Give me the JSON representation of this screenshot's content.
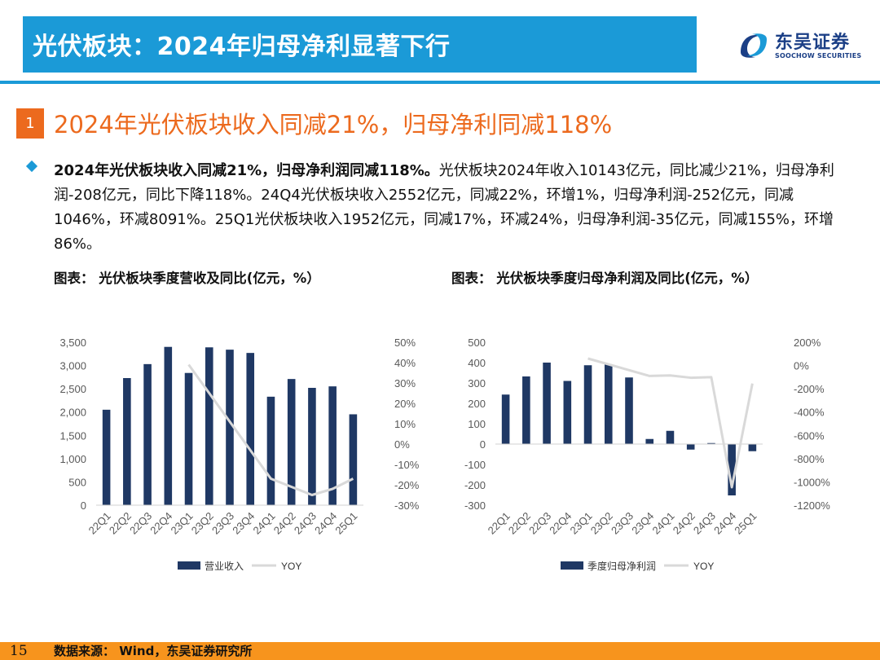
{
  "header": {
    "title": "光伏板块：2024年归母净利显著下行",
    "logo_cn": "东吴证券",
    "logo_en": "SOOCHOW SECURITIES",
    "accent": "#1b9ad7",
    "logo_color": "#1b3f86"
  },
  "section": {
    "number": "1",
    "title": "2024年光伏板块收入同减21%，归母净利同减118%",
    "accent": "#ec6a1e"
  },
  "body": {
    "bold_lead": "2024年光伏板块收入同减21%，归母净利润同减118%。",
    "text": "光伏板块2024年收入10143亿元，同比减少21%，归母净利润-208亿元，同比下降118%。24Q4光伏板块收入2552亿元，同减22%，环增1%，归母净利润-252亿元，同减1046%，环减8091%。25Q1光伏板块收入1952亿元，同减17%，环减24%，归母净利润-35亿元，同减155%，环增86%。"
  },
  "figures": [
    {
      "caption": "图表：  光伏板块季度营收及同比(亿元，%）"
    },
    {
      "caption": "图表：  光伏板块季度归母净利润及同比(亿元，%）"
    }
  ],
  "chart_data": [
    {
      "type": "bar",
      "categories": [
        "22Q1",
        "22Q2",
        "22Q3",
        "22Q4",
        "23Q1",
        "23Q2",
        "23Q3",
        "23Q4",
        "24Q1",
        "24Q2",
        "24Q3",
        "24Q4",
        "25Q1"
      ],
      "series": [
        {
          "name": "营业收入",
          "type": "bar",
          "axis": "left",
          "color": "#1f3864",
          "values": [
            2050,
            2730,
            3030,
            3400,
            2840,
            3390,
            3340,
            3270,
            2330,
            2710,
            2520,
            2552,
            1952
          ]
        },
        {
          "name": "YOY",
          "type": "line",
          "axis": "right",
          "color": "#d9d9d9",
          "values": [
            null,
            null,
            null,
            null,
            39,
            null,
            null,
            null,
            -17,
            null,
            -25,
            -22,
            -17
          ]
        }
      ],
      "y_left": {
        "min": 0,
        "max": 3500,
        "ticks": [
          "0",
          "500",
          "1,000",
          "1,500",
          "2,000",
          "2,500",
          "3,000",
          "3,500"
        ]
      },
      "y_right": {
        "min": -30,
        "max": 50,
        "ticks": [
          "-30%",
          "-20%",
          "-10%",
          "0%",
          "10%",
          "20%",
          "30%",
          "40%",
          "50%"
        ]
      },
      "legend": "bottom",
      "grid": false
    },
    {
      "type": "bar",
      "categories": [
        "22Q1",
        "22Q2",
        "22Q3",
        "22Q4",
        "23Q1",
        "23Q2",
        "23Q3",
        "23Q4",
        "24Q1",
        "24Q2",
        "24Q3",
        "24Q4",
        "25Q1"
      ],
      "series": [
        {
          "name": "季度归母净利润",
          "type": "bar",
          "axis": "left",
          "color": "#1f3864",
          "values": [
            243,
            332,
            400,
            310,
            387,
            390,
            327,
            25,
            65,
            -27,
            5,
            -252,
            -35
          ]
        },
        {
          "name": "YOY",
          "type": "line",
          "axis": "right",
          "color": "#d9d9d9",
          "values": [
            null,
            null,
            null,
            null,
            60,
            null,
            null,
            -90,
            -85,
            -105,
            -100,
            -1046,
            -155
          ]
        }
      ],
      "y_left": {
        "min": -300,
        "max": 500,
        "ticks": [
          "-300",
          "-200",
          "-100",
          "0",
          "100",
          "200",
          "300",
          "400",
          "500"
        ]
      },
      "y_right": {
        "min": -1200,
        "max": 200,
        "ticks": [
          "-1200%",
          "-1000%",
          "-800%",
          "-600%",
          "-400%",
          "-200%",
          "0%",
          "200%"
        ]
      },
      "legend": "bottom",
      "grid": false
    }
  ],
  "footer": {
    "page": "15",
    "source": "数据来源：  Wind，东吴证券研究所",
    "color": "#f7941d"
  }
}
